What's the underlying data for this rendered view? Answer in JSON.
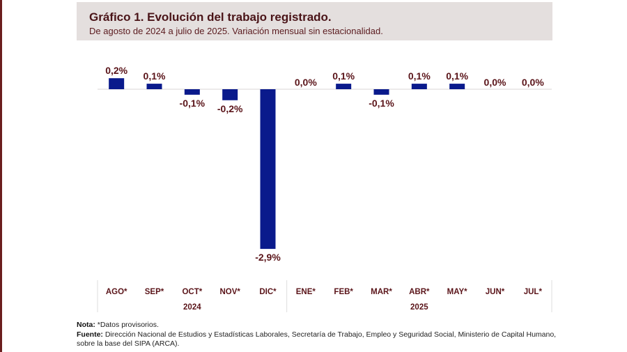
{
  "title": "Gráfico 1. Evolución del trabajo registrado.",
  "subtitle": "De agosto de 2024 a julio de 2025. Variación mensual sin estacionalidad.",
  "colors": {
    "bar": "#0a1a8c",
    "text": "#5a1419",
    "title_bg": "#e4dfde",
    "frame": "#6b1e1e"
  },
  "chart_data": {
    "type": "bar",
    "title": "Gráfico 1. Evolución del trabajo registrado.",
    "subtitle": "De agosto de 2024 a julio de 2025. Variación mensual sin estacionalidad.",
    "categories": [
      "AGO*",
      "SEP*",
      "OCT*",
      "NOV*",
      "DIC*",
      "ENE*",
      "FEB*",
      "MAR*",
      "ABR*",
      "MAY*",
      "JUN*",
      "JUL*"
    ],
    "year_groups": [
      {
        "label": "2024",
        "count": 5
      },
      {
        "label": "2025",
        "count": 7
      }
    ],
    "values": [
      0.2,
      0.1,
      -0.1,
      -0.2,
      -2.9,
      0.0,
      0.1,
      -0.1,
      0.1,
      0.1,
      0.0,
      0.0
    ],
    "data_labels": [
      "0,2%",
      "0,1%",
      "-0,1%",
      "-0,2%",
      "-2,9%",
      "0,0%",
      "0,1%",
      "-0,1%",
      "0,1%",
      "0,1%",
      "0,0%",
      "0,0%"
    ],
    "xlabel": "",
    "ylabel": "",
    "grid": false,
    "legend": "none"
  },
  "notes": {
    "nota_label": "Nota:",
    "nota_text": " *Datos provisorios.",
    "fuente_label": "Fuente:",
    "fuente_text": " Dirección Nacional de Estudios y Estadísticas Laborales, Secretaría de Trabajo, Empleo y Seguridad Social, Ministerio de Capital Humano, sobre la base del SIPA (ARCA)."
  }
}
